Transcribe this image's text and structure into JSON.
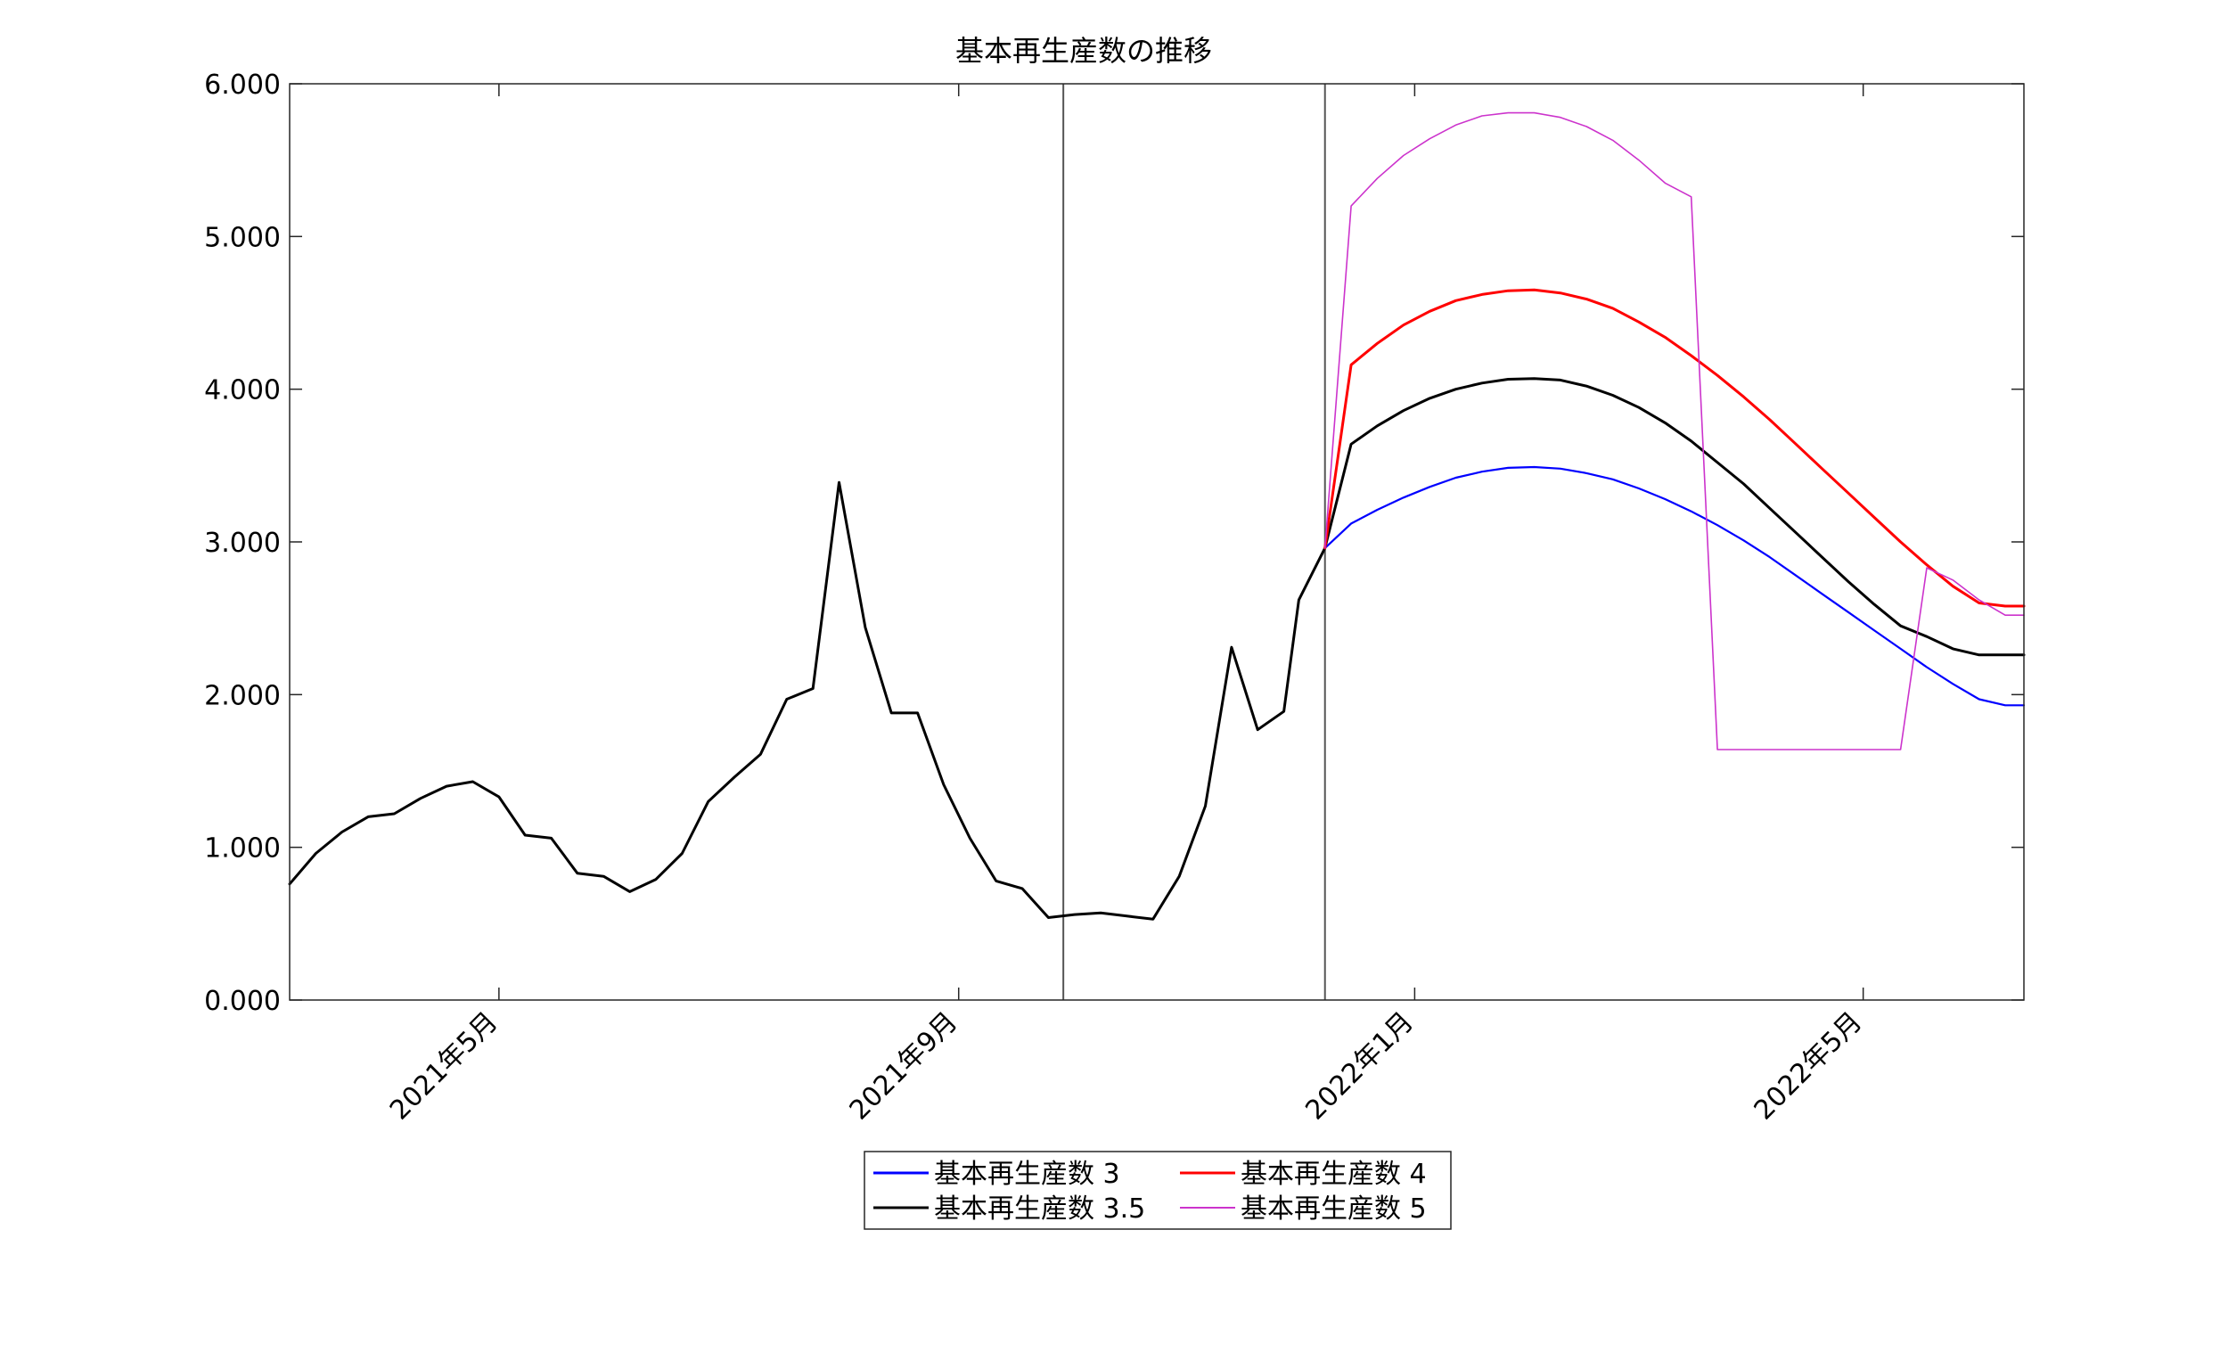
{
  "chart_data": {
    "type": "line",
    "title": "基本再生産数の推移",
    "xlabel": "",
    "ylabel": "",
    "ylim": [
      0,
      6
    ],
    "xlim": [
      "2021-03-06",
      "2022-06-13"
    ],
    "grid": false,
    "legend_position": "bottom-center",
    "y_ticks": [
      "0.000",
      "1.000",
      "2.000",
      "3.000",
      "4.000",
      "5.000",
      "6.000"
    ],
    "x_ticks": [
      {
        "date": "2021-05-01",
        "label": "2021年5月"
      },
      {
        "date": "2021-09-01",
        "label": "2021年9月"
      },
      {
        "date": "2022-01-01",
        "label": "2022年1月"
      },
      {
        "date": "2022-05-01",
        "label": "2022年5月"
      }
    ],
    "vertical_lines": [
      "2021-09-29",
      "2021-12-08"
    ],
    "series": [
      {
        "name": "基本再生産数 3",
        "color": "#0000ff",
        "width": 2.2,
        "x": [
          "2021-12-08",
          "2021-12-15",
          "2021-12-22",
          "2021-12-29",
          "2022-01-05",
          "2022-01-12",
          "2022-01-19",
          "2022-01-26",
          "2022-02-02",
          "2022-02-09",
          "2022-02-16",
          "2022-02-23",
          "2022-03-02",
          "2022-03-09",
          "2022-03-16",
          "2022-03-23",
          "2022-03-30",
          "2022-04-06",
          "2022-04-13",
          "2022-04-20",
          "2022-04-27",
          "2022-05-04",
          "2022-05-11",
          "2022-05-18",
          "2022-05-25",
          "2022-06-01",
          "2022-06-08",
          "2022-06-13"
        ],
        "y": [
          2.96,
          3.12,
          3.21,
          3.29,
          3.36,
          3.42,
          3.46,
          3.485,
          3.49,
          3.48,
          3.45,
          3.41,
          3.35,
          3.28,
          3.2,
          3.11,
          3.01,
          2.9,
          2.78,
          2.66,
          2.54,
          2.42,
          2.3,
          2.18,
          2.07,
          1.97,
          1.93,
          1.93
        ]
      },
      {
        "name": "基本再生産数 3.5",
        "color": "#000000",
        "width": 3,
        "x": [
          "2021-03-06",
          "2021-03-13",
          "2021-03-20",
          "2021-03-27",
          "2021-04-03",
          "2021-04-10",
          "2021-04-17",
          "2021-04-24",
          "2021-05-01",
          "2021-05-08",
          "2021-05-15",
          "2021-05-22",
          "2021-05-29",
          "2021-06-05",
          "2021-06-12",
          "2021-06-19",
          "2021-06-26",
          "2021-07-03",
          "2021-07-10",
          "2021-07-17",
          "2021-07-24",
          "2021-07-31",
          "2021-08-07",
          "2021-08-14",
          "2021-08-21",
          "2021-08-28",
          "2021-09-04",
          "2021-09-11",
          "2021-09-18",
          "2021-09-25",
          "2021-10-02",
          "2021-10-09",
          "2021-10-16",
          "2021-10-23",
          "2021-10-30",
          "2021-11-06",
          "2021-11-13",
          "2021-11-20",
          "2021-11-27",
          "2021-12-01",
          "2021-12-08",
          "2021-12-15",
          "2021-12-22",
          "2021-12-29",
          "2022-01-05",
          "2022-01-12",
          "2022-01-19",
          "2022-01-26",
          "2022-02-02",
          "2022-02-09",
          "2022-02-16",
          "2022-02-23",
          "2022-03-02",
          "2022-03-09",
          "2022-03-16",
          "2022-03-23",
          "2022-03-30",
          "2022-04-06",
          "2022-04-13",
          "2022-04-20",
          "2022-04-27",
          "2022-05-04",
          "2022-05-11",
          "2022-05-18",
          "2022-05-25",
          "2022-06-01",
          "2022-06-08",
          "2022-06-13"
        ],
        "y": [
          0.76,
          0.96,
          1.1,
          1.2,
          1.22,
          1.32,
          1.4,
          1.43,
          1.33,
          1.08,
          1.06,
          0.83,
          0.81,
          0.71,
          0.79,
          0.96,
          1.3,
          1.46,
          1.61,
          1.97,
          2.04,
          3.39,
          2.44,
          1.88,
          1.88,
          1.41,
          1.06,
          0.78,
          0.73,
          0.54,
          0.56,
          0.57,
          0.55,
          0.53,
          0.81,
          1.27,
          2.31,
          1.77,
          1.89,
          2.62,
          2.96,
          3.64,
          3.76,
          3.86,
          3.94,
          4.0,
          4.04,
          4.065,
          4.07,
          4.06,
          4.02,
          3.96,
          3.88,
          3.78,
          3.66,
          3.52,
          3.38,
          3.22,
          3.06,
          2.9,
          2.74,
          2.59,
          2.45,
          2.38,
          2.3,
          2.26,
          2.26,
          2.26
        ]
      },
      {
        "name": "基本再生産数 4",
        "color": "#ff0000",
        "width": 3,
        "x": [
          "2021-12-08",
          "2021-12-15",
          "2021-12-22",
          "2021-12-29",
          "2022-01-05",
          "2022-01-12",
          "2022-01-19",
          "2022-01-26",
          "2022-02-02",
          "2022-02-09",
          "2022-02-16",
          "2022-02-23",
          "2022-03-02",
          "2022-03-09",
          "2022-03-16",
          "2022-03-23",
          "2022-03-30",
          "2022-04-06",
          "2022-04-13",
          "2022-04-20",
          "2022-04-27",
          "2022-05-04",
          "2022-05-11",
          "2022-05-18",
          "2022-05-25",
          "2022-06-01",
          "2022-06-08",
          "2022-06-13"
        ],
        "y": [
          2.96,
          4.16,
          4.3,
          4.42,
          4.51,
          4.58,
          4.62,
          4.645,
          4.65,
          4.63,
          4.59,
          4.53,
          4.44,
          4.34,
          4.22,
          4.09,
          3.95,
          3.8,
          3.64,
          3.48,
          3.32,
          3.16,
          3.0,
          2.85,
          2.71,
          2.6,
          2.58,
          2.58
        ]
      },
      {
        "name": "基本再生産数 5",
        "color": "#cc33cc",
        "width": 1.6,
        "x": [
          "2021-12-08",
          "2021-12-15",
          "2021-12-22",
          "2021-12-29",
          "2022-01-05",
          "2022-01-12",
          "2022-01-19",
          "2022-01-26",
          "2022-02-02",
          "2022-02-09",
          "2022-02-16",
          "2022-02-23",
          "2022-03-02",
          "2022-03-09",
          "2022-03-16",
          "2022-03-23",
          "2022-03-30",
          "2022-04-06",
          "2022-04-13",
          "2022-04-20",
          "2022-04-27",
          "2022-05-04",
          "2022-05-11",
          "2022-05-18",
          "2022-05-25",
          "2022-06-01",
          "2022-06-08",
          "2022-06-13"
        ],
        "y": [
          2.96,
          5.2,
          5.38,
          5.53,
          5.64,
          5.73,
          5.79,
          5.81,
          5.81,
          5.78,
          5.72,
          5.63,
          5.5,
          5.35,
          5.26,
          1.64,
          1.64,
          1.64,
          1.64,
          1.64,
          1.64,
          1.64,
          1.64,
          2.83,
          2.75,
          2.62,
          2.52,
          2.52
        ]
      }
    ]
  }
}
